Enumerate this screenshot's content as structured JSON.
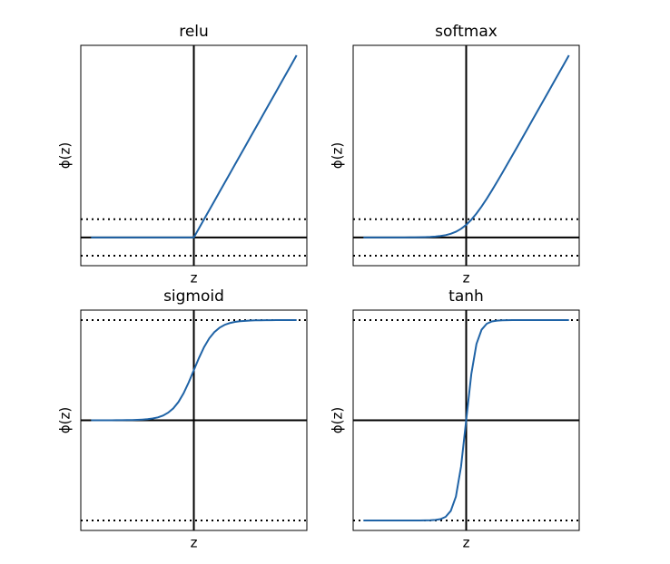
{
  "chart_data": [
    {
      "type": "line",
      "title": "relu",
      "xlabel": "z",
      "ylabel": "ϕ(z)",
      "color": "#1f63a6",
      "xlim": [
        -11,
        11
      ],
      "ylim": [
        -1.55,
        10.55
      ],
      "hlines": [
        {
          "y": -1,
          "style": "dotted"
        },
        {
          "y": 0,
          "style": "solid"
        },
        {
          "y": 1,
          "style": "dotted"
        }
      ],
      "vlines": [
        0
      ],
      "x": [
        -10,
        -9.5,
        -9,
        -8.5,
        -8,
        -7.5,
        -7,
        -6.5,
        -6,
        -5.5,
        -5,
        -4.5,
        -4,
        -3.5,
        -3,
        -2.5,
        -2,
        -1.5,
        -1,
        -0.5,
        0,
        0.5,
        1,
        1.5,
        2,
        2.5,
        3,
        3.5,
        4,
        4.5,
        5,
        5.5,
        6,
        6.5,
        7,
        7.5,
        8,
        8.5,
        9,
        9.5,
        10
      ],
      "values": [
        0,
        0,
        0,
        0,
        0,
        0,
        0,
        0,
        0,
        0,
        0,
        0,
        0,
        0,
        0,
        0,
        0,
        0,
        0,
        0,
        0,
        0.5,
        1,
        1.5,
        2,
        2.5,
        3,
        3.5,
        4,
        4.5,
        5,
        5.5,
        6,
        6.5,
        7,
        7.5,
        8,
        8.5,
        9,
        9.5,
        10
      ]
    },
    {
      "type": "line",
      "title": "softmax",
      "xlabel": "z",
      "ylabel": "ϕ(z)",
      "color": "#1f63a6",
      "xlim": [
        -11,
        11
      ],
      "ylim": [
        -1.55,
        10.55
      ],
      "hlines": [
        {
          "y": -1,
          "style": "dotted"
        },
        {
          "y": 0,
          "style": "solid"
        },
        {
          "y": 1,
          "style": "dotted"
        }
      ],
      "vlines": [
        0
      ],
      "x": [
        -10,
        -9.5,
        -9,
        -8.5,
        -8,
        -7.5,
        -7,
        -6.5,
        -6,
        -5.5,
        -5,
        -4.5,
        -4,
        -3.5,
        -3,
        -2.5,
        -2,
        -1.5,
        -1,
        -0.5,
        0,
        0.5,
        1,
        1.5,
        2,
        2.5,
        3,
        3.5,
        4,
        4.5,
        5,
        5.5,
        6,
        6.5,
        7,
        7.5,
        8,
        8.5,
        9,
        9.5,
        10
      ],
      "values": [
        0,
        0,
        0,
        0,
        0,
        0.001,
        0.001,
        0.002,
        0.002,
        0.004,
        0.007,
        0.011,
        0.018,
        0.03,
        0.049,
        0.079,
        0.127,
        0.201,
        0.313,
        0.474,
        0.693,
        0.974,
        1.313,
        1.701,
        2.127,
        2.579,
        3.049,
        3.53,
        4.018,
        4.511,
        5.007,
        5.504,
        6.002,
        6.502,
        7.001,
        7.501,
        8,
        8.5,
        9,
        9.5,
        10
      ]
    },
    {
      "type": "line",
      "title": "sigmoid",
      "xlabel": "z",
      "ylabel": "ϕ(z)",
      "color": "#1f63a6",
      "xlim": [
        -11,
        11
      ],
      "ylim": [
        -1.1,
        1.1
      ],
      "hlines": [
        {
          "y": -1,
          "style": "dotted"
        },
        {
          "y": 0,
          "style": "solid"
        },
        {
          "y": 1,
          "style": "dotted"
        }
      ],
      "vlines": [
        0
      ],
      "x": [
        -10,
        -9.5,
        -9,
        -8.5,
        -8,
        -7.5,
        -7,
        -6.5,
        -6,
        -5.5,
        -5,
        -4.5,
        -4,
        -3.5,
        -3,
        -2.5,
        -2,
        -1.5,
        -1,
        -0.5,
        0,
        0.5,
        1,
        1.5,
        2,
        2.5,
        3,
        3.5,
        4,
        4.5,
        5,
        5.5,
        6,
        6.5,
        7,
        7.5,
        8,
        8.5,
        9,
        9.5,
        10
      ],
      "values": [
        0,
        0,
        0,
        0,
        0,
        0.001,
        0.001,
        0.002,
        0.002,
        0.004,
        0.007,
        0.011,
        0.018,
        0.029,
        0.047,
        0.076,
        0.119,
        0.182,
        0.269,
        0.378,
        0.5,
        0.622,
        0.731,
        0.818,
        0.881,
        0.924,
        0.953,
        0.971,
        0.982,
        0.989,
        0.993,
        0.996,
        0.998,
        0.998,
        0.999,
        0.999,
        1,
        1,
        1,
        1,
        1
      ]
    },
    {
      "type": "line",
      "title": "tanh",
      "xlabel": "z",
      "ylabel": "ϕ(z)",
      "color": "#1f63a6",
      "xlim": [
        -11,
        11
      ],
      "ylim": [
        -1.1,
        1.1
      ],
      "hlines": [
        {
          "y": -1,
          "style": "dotted"
        },
        {
          "y": 0,
          "style": "solid"
        },
        {
          "y": 1,
          "style": "dotted"
        }
      ],
      "vlines": [
        0
      ],
      "x": [
        -10,
        -9.5,
        -9,
        -8.5,
        -8,
        -7.5,
        -7,
        -6.5,
        -6,
        -5.5,
        -5,
        -4.5,
        -4,
        -3.5,
        -3,
        -2.5,
        -2,
        -1.5,
        -1,
        -0.5,
        0,
        0.5,
        1,
        1.5,
        2,
        2.5,
        3,
        3.5,
        4,
        4.5,
        5,
        5.5,
        6,
        6.5,
        7,
        7.5,
        8,
        8.5,
        9,
        9.5,
        10
      ],
      "values": [
        -1,
        -1,
        -1,
        -1,
        -1,
        -1,
        -1,
        -1,
        -1,
        -1,
        -1,
        -1,
        -0.999,
        -0.998,
        -0.995,
        -0.987,
        -0.964,
        -0.905,
        -0.762,
        -0.462,
        0,
        0.462,
        0.762,
        0.905,
        0.964,
        0.987,
        0.995,
        0.998,
        0.999,
        1,
        1,
        1,
        1,
        1,
        1,
        1,
        1,
        1,
        1,
        1,
        1
      ]
    }
  ]
}
